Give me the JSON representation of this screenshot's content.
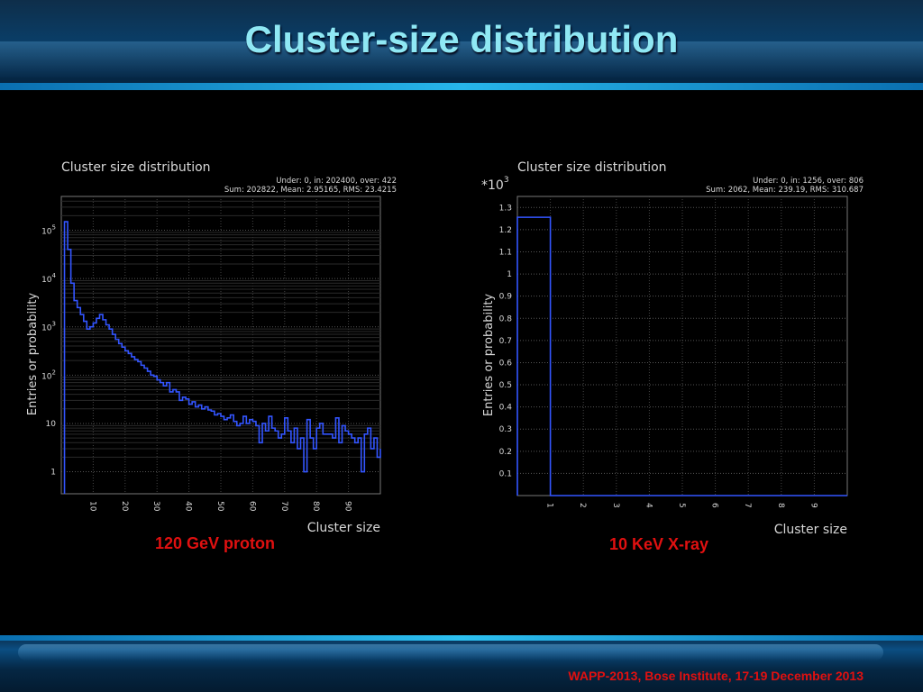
{
  "slide_title": "Cluster-size distribution",
  "footer": "WAPP-2013, Bose Institute, 17-19 December 2013",
  "captions": {
    "left": "120 GeV proton",
    "right": "10 KeV X-ray"
  },
  "colors": {
    "title": "#8fe8f4",
    "caption": "#e01010",
    "series": "#3355ff",
    "axis_text": "#d8d8d8"
  },
  "chart_data": [
    {
      "type": "histogram",
      "title": "Cluster size distribution",
      "stats": [
        "Under: 0, in: 202400, over: 422",
        "Sum: 202822, Mean: 2.95165, RMS: 23.4215"
      ],
      "xlabel": "Cluster size",
      "ylabel": "Entries or probability",
      "yscale": "log",
      "xlim": [
        0,
        100
      ],
      "ylim": [
        0.35,
        500000
      ],
      "x_ticks": [
        "10",
        "20",
        "30",
        "40",
        "50",
        "60",
        "70",
        "80",
        "90"
      ],
      "y_ticks": [
        "1",
        "10",
        "10^2",
        "10^3",
        "10^4",
        "10^5"
      ],
      "grid": true,
      "series": [
        {
          "x": [
            1,
            2,
            3,
            4,
            5,
            6,
            7,
            8,
            9,
            10,
            11,
            12,
            13,
            14,
            15,
            16,
            17,
            18,
            19,
            20,
            21,
            22,
            23,
            24,
            25,
            26,
            27,
            28,
            29,
            30,
            31,
            32,
            33,
            34,
            35,
            36,
            37,
            38,
            39,
            40,
            41,
            42,
            43,
            44,
            45,
            46,
            47,
            48,
            49,
            50,
            51,
            52,
            53,
            54,
            55,
            56,
            57,
            58,
            59,
            60,
            61,
            62,
            63,
            64,
            65,
            66,
            67,
            68,
            69,
            70,
            71,
            72,
            73,
            74,
            75,
            76,
            77,
            78,
            79,
            80,
            81,
            82,
            83,
            84,
            85,
            86,
            87,
            88,
            89,
            90,
            91,
            92,
            93,
            94,
            95,
            96,
            97,
            98,
            99,
            100
          ],
          "y": [
            150000,
            40000,
            8000,
            3500,
            2500,
            1800,
            1300,
            900,
            1000,
            1200,
            1500,
            1800,
            1400,
            1100,
            900,
            700,
            550,
            450,
            380,
            320,
            280,
            240,
            210,
            190,
            160,
            140,
            120,
            100,
            95,
            80,
            70,
            60,
            70,
            45,
            50,
            45,
            30,
            35,
            32,
            25,
            28,
            22,
            24,
            20,
            22,
            19,
            18,
            15,
            16,
            14,
            12,
            13,
            15,
            11,
            9,
            10,
            14,
            10,
            12,
            11,
            9,
            4,
            10,
            7,
            14,
            8,
            7,
            5,
            6,
            13,
            7,
            4,
            8,
            3,
            5,
            1,
            12,
            5,
            3,
            8,
            10,
            6,
            6,
            6,
            5,
            13,
            4,
            9,
            7,
            6,
            5,
            4,
            5,
            1,
            6,
            8,
            3,
            5,
            2,
            3
          ]
        }
      ]
    },
    {
      "type": "histogram",
      "title": "Cluster size distribution",
      "stats": [
        "Under: 0, in: 1256, over: 806",
        "Sum: 2062, Mean: 239.19, RMS: 310.687"
      ],
      "xlabel": "Cluster size",
      "ylabel": "Entries or probability",
      "y_multiplier": "*10^3",
      "xlim": [
        0,
        10
      ],
      "ylim": [
        0,
        1.35
      ],
      "x_ticks": [
        "1",
        "2",
        "3",
        "4",
        "5",
        "6",
        "7",
        "8",
        "9"
      ],
      "y_ticks": [
        "0.1",
        "0.2",
        "0.3",
        "0.4",
        "0.5",
        "0.6",
        "0.7",
        "0.8",
        "0.9",
        "1",
        "1.1",
        "1.2",
        "1.3"
      ],
      "grid": true,
      "series": [
        {
          "x": [
            0,
            1,
            2,
            3,
            4,
            5,
            6,
            7,
            8,
            9
          ],
          "y": [
            1.256,
            0,
            0,
            0,
            0,
            0,
            0,
            0,
            0,
            0
          ]
        }
      ]
    }
  ]
}
